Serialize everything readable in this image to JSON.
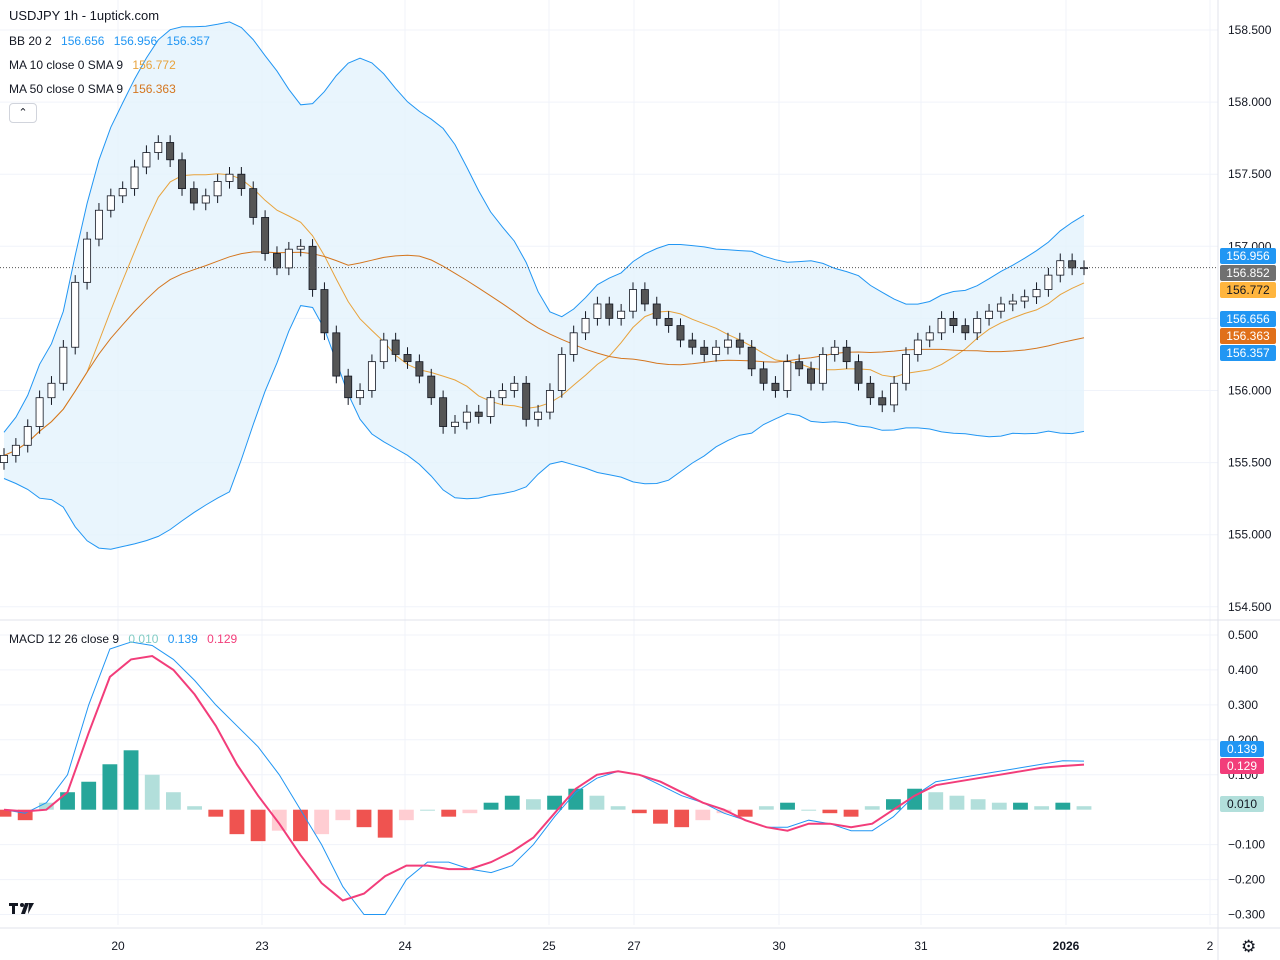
{
  "header": {
    "title": "USDJPY 1h - 1uptick.com",
    "bb": {
      "label": "BB 20 2",
      "basis": "156.656",
      "upper": "156.956",
      "lower": "156.357"
    },
    "ma10": {
      "label": "MA 10 close 0 SMA 9",
      "value": "156.772"
    },
    "ma50": {
      "label": "MA 50 close 0 SMA 9",
      "value": "156.363"
    },
    "macd": {
      "label": "MACD 12 26 close 9",
      "hist": "0.010",
      "macd": "0.139",
      "signal": "0.129"
    }
  },
  "colors": {
    "up_candle": "#ffffff",
    "down_candle": "#555555",
    "candle_border": "#131722",
    "bb": "#2196f3",
    "bb_fill": "#e3f2fd",
    "ma10": "#e8a33c",
    "ma50": "#d4761f",
    "macd_line": "#2196f3",
    "signal_line": "#f23d7a",
    "hist_pos_strong": "#26a69a",
    "hist_pos_weak": "#b2dfdb",
    "hist_neg_strong": "#ef5350",
    "hist_neg_weak": "#ffcdd2"
  },
  "icons": {
    "collapse": "chevron-up-icon",
    "logo": "tradingview-logo",
    "settings": "gear-icon"
  },
  "chart_data": [
    {
      "type": "candlestick",
      "symbol": "USDJPY",
      "timeframe": "1h",
      "y_ticks": [
        "158.500",
        "158.000",
        "157.500",
        "157.000",
        "156.500",
        "156.000",
        "155.500",
        "155.000",
        "154.500"
      ],
      "x_ticks": [
        "20",
        "23",
        "24",
        "25",
        "27",
        "30",
        "31",
        "2026",
        "2"
      ],
      "ylim": [
        154.45,
        158.5
      ],
      "close_path": [
        155.55,
        155.62,
        155.75,
        155.95,
        156.05,
        156.3,
        156.75,
        157.05,
        157.25,
        157.35,
        157.4,
        157.55,
        157.65,
        157.72,
        157.6,
        157.4,
        157.3,
        157.35,
        157.45,
        157.5,
        157.4,
        157.2,
        156.95,
        156.85,
        156.98,
        157.0,
        156.7,
        156.4,
        156.1,
        155.95,
        156.0,
        156.2,
        156.35,
        156.25,
        156.2,
        156.1,
        155.95,
        155.75,
        155.78,
        155.85,
        155.82,
        155.95,
        156.0,
        156.05,
        155.8,
        155.85,
        156.0,
        156.25,
        156.4,
        156.5,
        156.6,
        156.5,
        156.55,
        156.7,
        156.6,
        156.5,
        156.45,
        156.35,
        156.3,
        156.25,
        156.3,
        156.35,
        156.3,
        156.15,
        156.05,
        156.0,
        156.2,
        156.15,
        156.05,
        156.25,
        156.3,
        156.2,
        156.05,
        155.95,
        155.9,
        156.05,
        156.25,
        156.35,
        156.4,
        156.5,
        156.45,
        156.4,
        156.5,
        156.55,
        156.6,
        156.62,
        156.65,
        156.7,
        156.8,
        156.9,
        156.85,
        156.852
      ]
    },
    {
      "type": "bar",
      "name": "MACD",
      "y_ticks": [
        "0.500",
        "0.400",
        "0.300",
        "0.200",
        "0.100",
        "−0.100",
        "−0.200",
        "−0.300"
      ],
      "ylim": [
        -0.33,
        0.52
      ],
      "macd_path": [
        0.0,
        -0.01,
        0.02,
        0.1,
        0.3,
        0.46,
        0.48,
        0.47,
        0.43,
        0.37,
        0.3,
        0.24,
        0.18,
        0.1,
        0.0,
        -0.1,
        -0.22,
        -0.3,
        -0.3,
        -0.2,
        -0.15,
        -0.15,
        -0.17,
        -0.18,
        -0.16,
        -0.1,
        -0.02,
        0.05,
        0.09,
        0.11,
        0.1,
        0.07,
        0.04,
        0.02,
        -0.01,
        -0.03,
        -0.05,
        -0.05,
        -0.03,
        -0.04,
        -0.06,
        -0.06,
        -0.02,
        0.04,
        0.08,
        0.09,
        0.1,
        0.11,
        0.12,
        0.13,
        0.14,
        0.139
      ],
      "signal_path": [
        0.0,
        -0.005,
        0.0,
        0.05,
        0.22,
        0.38,
        0.43,
        0.44,
        0.4,
        0.33,
        0.24,
        0.13,
        0.04,
        -0.04,
        -0.13,
        -0.21,
        -0.26,
        -0.24,
        -0.19,
        -0.16,
        -0.16,
        -0.17,
        -0.17,
        -0.15,
        -0.12,
        -0.08,
        -0.01,
        0.06,
        0.1,
        0.11,
        0.1,
        0.08,
        0.05,
        0.02,
        0.0,
        -0.03,
        -0.05,
        -0.06,
        -0.04,
        -0.04,
        -0.05,
        -0.04,
        0.0,
        0.04,
        0.07,
        0.08,
        0.09,
        0.1,
        0.11,
        0.12,
        0.125,
        0.129
      ],
      "hist_path": [
        -0.02,
        -0.03,
        0.02,
        0.05,
        0.08,
        0.13,
        0.17,
        0.1,
        0.05,
        0.01,
        -0.02,
        -0.07,
        -0.09,
        -0.06,
        -0.09,
        -0.07,
        -0.03,
        -0.05,
        -0.08,
        -0.03,
        0.0,
        -0.02,
        -0.01,
        0.02,
        0.04,
        0.03,
        0.04,
        0.06,
        0.04,
        0.01,
        -0.01,
        -0.04,
        -0.05,
        -0.03,
        -0.01,
        -0.02,
        0.01,
        0.02,
        0.0,
        -0.01,
        -0.02,
        0.01,
        0.03,
        0.06,
        0.05,
        0.04,
        0.03,
        0.02,
        0.02,
        0.01,
        0.02,
        0.01
      ]
    }
  ],
  "price_badges": [
    {
      "value": "156.956",
      "color": "#2196f3",
      "text_color": "#ffffff"
    },
    {
      "value": "156.852",
      "color": "#707070",
      "text_color": "#ffffff"
    },
    {
      "value": "156.772",
      "color": "#ffb53e",
      "text_color": "#131722"
    },
    {
      "value": "156.656",
      "color": "#2196f3",
      "text_color": "#ffffff"
    },
    {
      "value": "156.363",
      "color": "#e0701a",
      "text_color": "#ffffff"
    },
    {
      "value": "156.357",
      "color": "#2196f3",
      "text_color": "#ffffff"
    }
  ],
  "macd_badges": [
    {
      "value": "0.139",
      "color": "#2196f3",
      "text_color": "#ffffff"
    },
    {
      "value": "0.129",
      "color": "#f23d7a",
      "text_color": "#ffffff"
    },
    {
      "value": "0.010",
      "color": "#b2dfdb",
      "text_color": "#131722"
    }
  ]
}
